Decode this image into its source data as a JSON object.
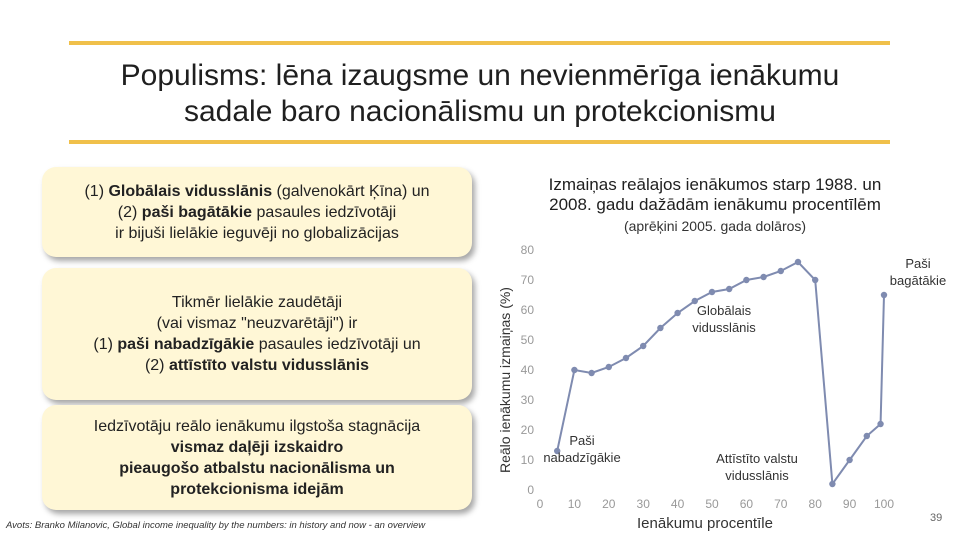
{
  "slide": {
    "title_line1": "Populisms: lēna izaugsme un nevienmērīga ienākumu",
    "title_line2": "sadale baro nacionālismu un protekcionismu",
    "page_number": "39",
    "source": "Avots: Branko Milanovic, Global income inequality by the numbers: in history and now - an overview"
  },
  "boxes": [
    {
      "line1_a": "(1) ",
      "line1_b": "Globālais vidusslānis",
      "line1_c": " (galvenokārt Ķīna) un",
      "line2_a": "(2) ",
      "line2_b": "paši bagātākie",
      "line2_c": " pasaules iedzīvotāji",
      "line3": "ir bijuši lielākie ieguvēji no globalizācijas"
    },
    {
      "line1": "Tikmēr lielākie zaudētāji",
      "line2": "(vai vismaz \"neuzvarētāji\") ir",
      "line3_a": "(1) ",
      "line3_b": "paši nabadzīgākie",
      "line3_c": " pasaules iedzīvotāji un",
      "line4_a": "(2) ",
      "line4_b": "attīstīto valstu vidusslānis"
    },
    {
      "line1": "Iedzīvotāju reālo ienākumu ilgstoša stagnācija",
      "line2_a": "vismaz ",
      "line2_b": "daļēji izskaidro",
      "line3": "pieaugošo atbalstu nacionālisma un",
      "line4": "protekcionisma idejām"
    }
  ],
  "chart_data": {
    "type": "line",
    "title_line1": "Izmaiņas reālajos ienākumos starp 1988. un",
    "title_line2": "2008. gadu dažādām ienākumu procentīlēm",
    "subtitle": "(aprēķini 2005. gada dolāros)",
    "xlabel": "Ienākumu procentīle",
    "ylabel": "Reālo ienākumu izmaiņas (%)",
    "xlim": [
      0,
      100
    ],
    "ylim": [
      0,
      80
    ],
    "xticks": [
      0,
      10,
      20,
      30,
      40,
      50,
      60,
      70,
      80,
      90,
      100
    ],
    "yticks": [
      0,
      10,
      20,
      30,
      40,
      50,
      60,
      70,
      80
    ],
    "grid": false,
    "color": "#7f8bb0",
    "x": [
      5,
      10,
      15,
      20,
      25,
      30,
      35,
      40,
      45,
      50,
      55,
      60,
      65,
      70,
      75,
      80,
      85,
      90,
      95,
      99,
      100
    ],
    "y": [
      13,
      40,
      39,
      41,
      44,
      48,
      54,
      59,
      63,
      66,
      67,
      70,
      71,
      73,
      76,
      70,
      2,
      10,
      18,
      22,
      65
    ],
    "annotations": [
      {
        "text_line1": "Paši",
        "text_line2": "bagātākie"
      },
      {
        "text_line1": "Globālais",
        "text_line2": "vidusslānis"
      },
      {
        "text_line1": "Paši",
        "text_line2": "nabadzīgākie"
      },
      {
        "text_line1": "Attīstīto valstu",
        "text_line2": "vidusslānis"
      }
    ]
  }
}
